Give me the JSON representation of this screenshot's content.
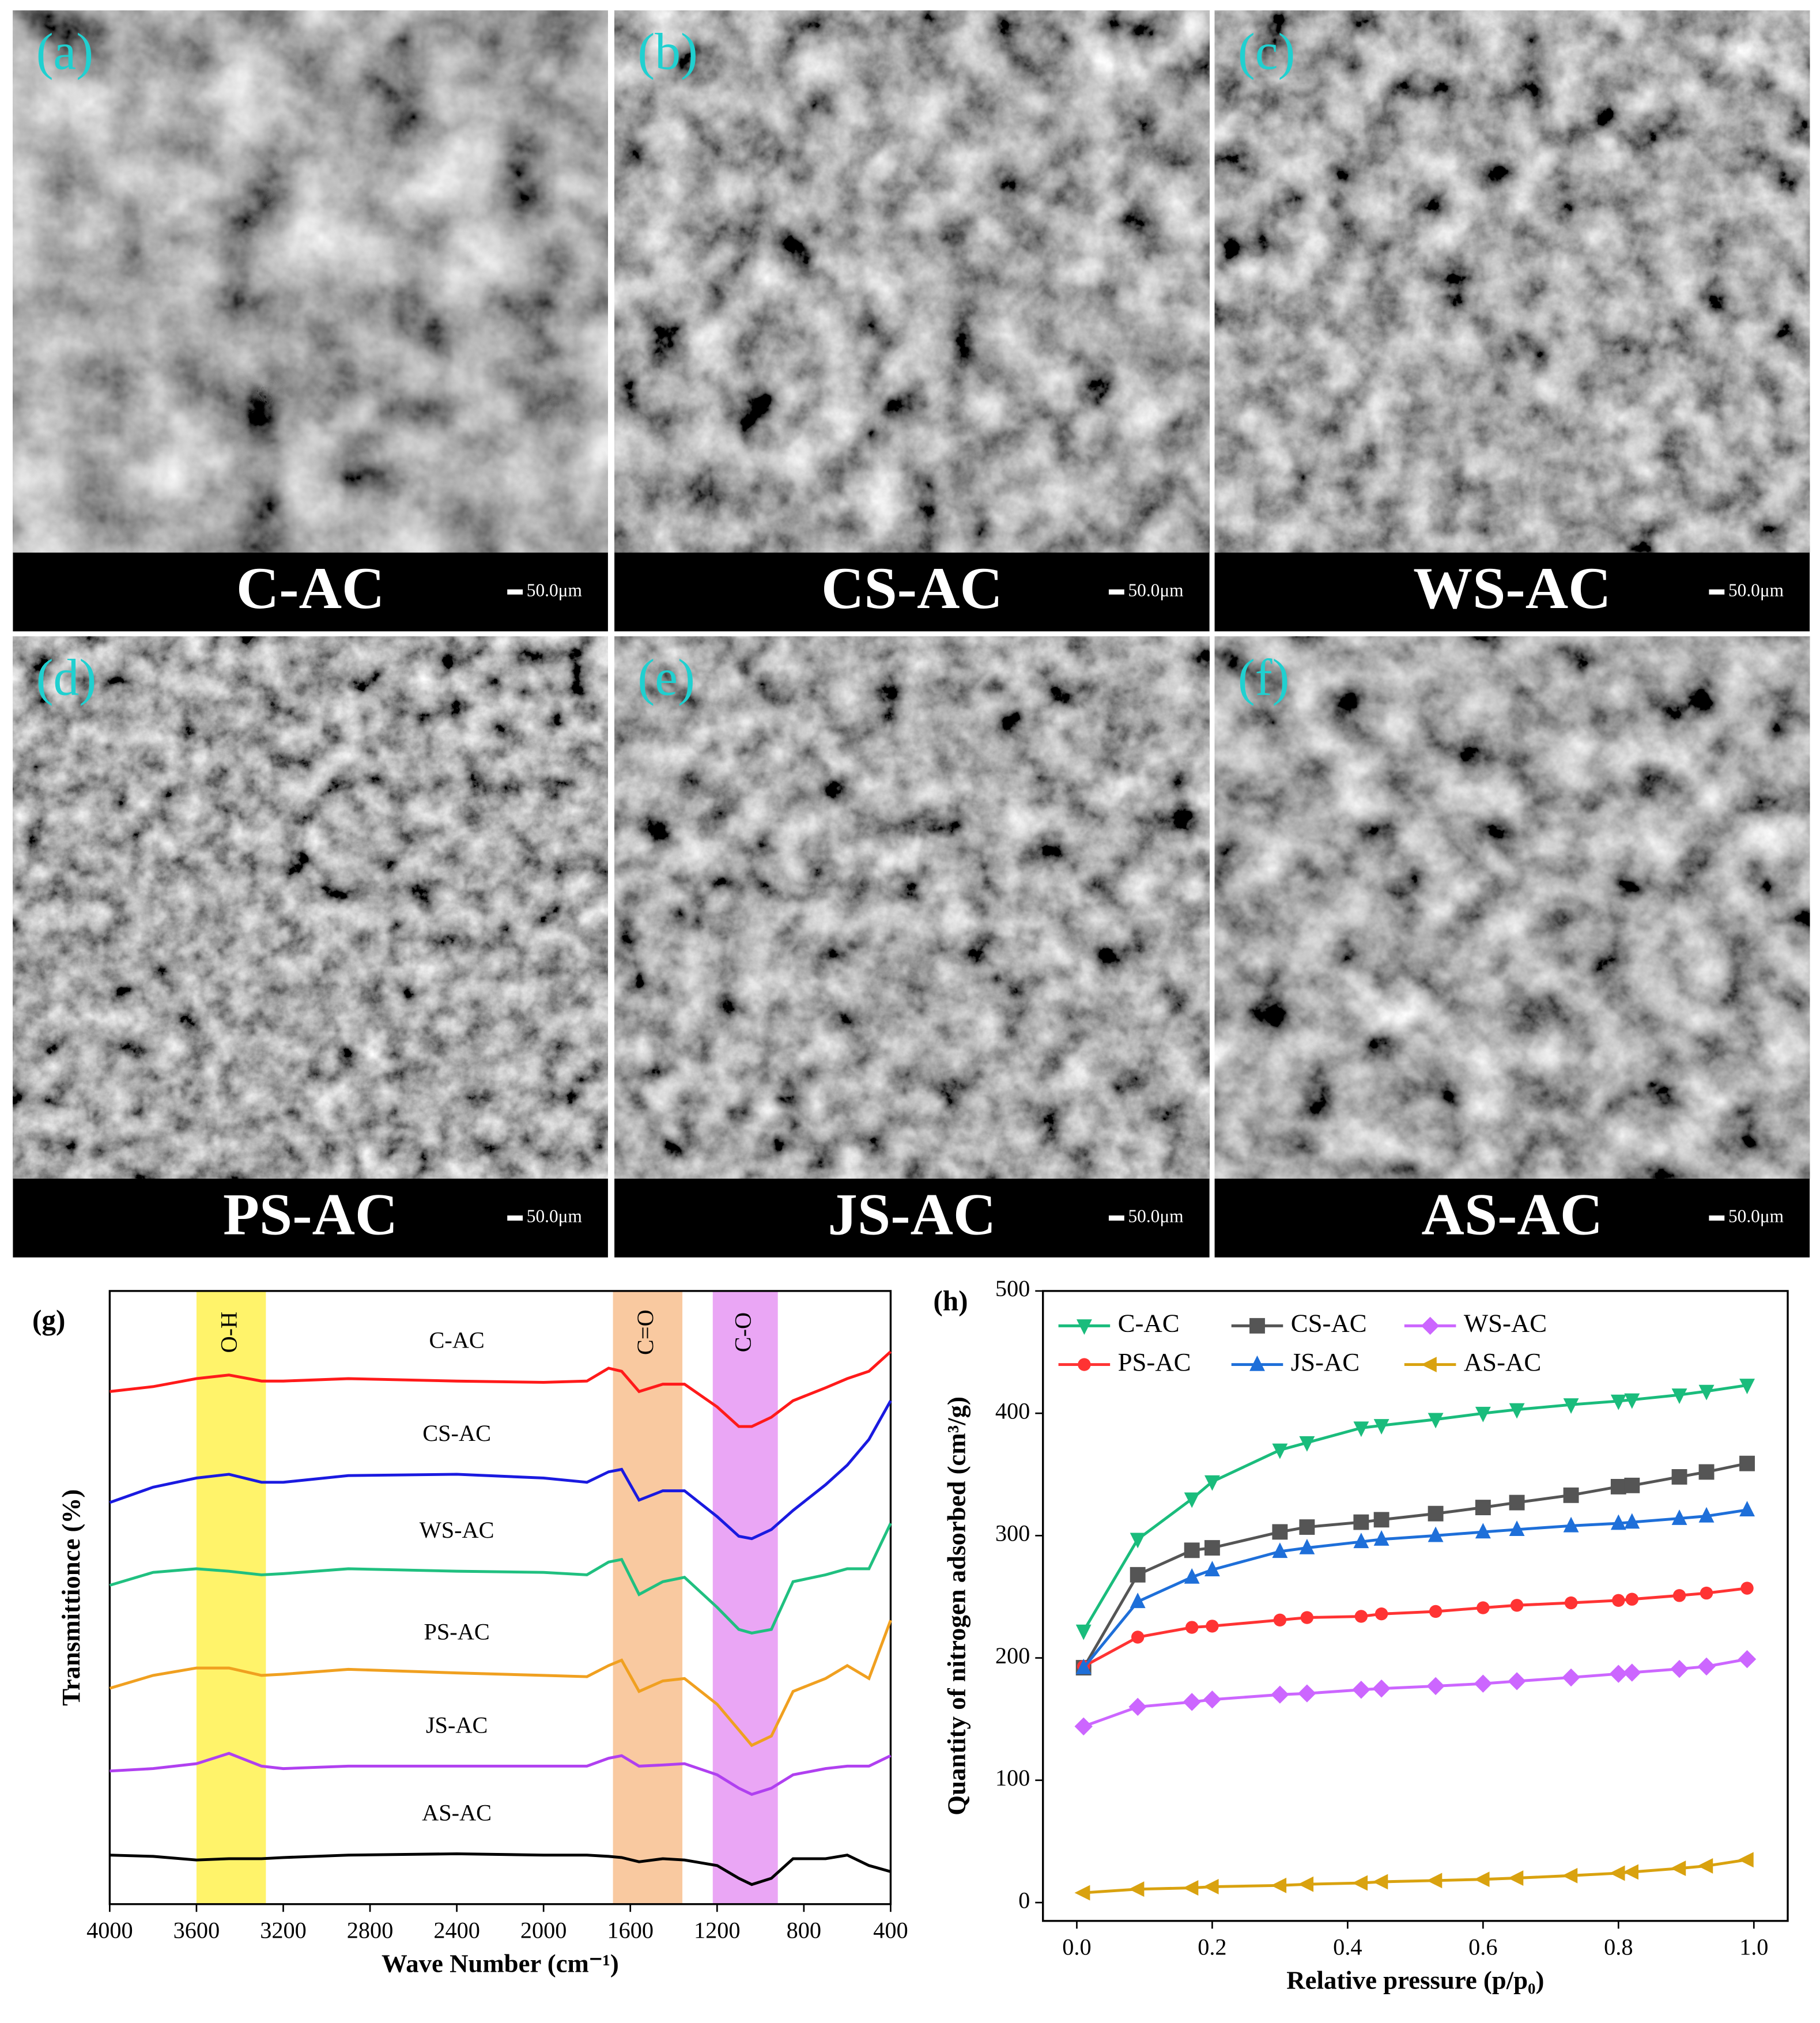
{
  "panels": [
    {
      "letter": "(a)",
      "label": "C-AC",
      "scale": "50.0μm"
    },
    {
      "letter": "(b)",
      "label": "CS-AC",
      "scale": "50.0μm"
    },
    {
      "letter": "(c)",
      "label": "WS-AC",
      "scale": "50.0μm"
    },
    {
      "letter": "(d)",
      "label": "PS-AC",
      "scale": "50.0μm"
    },
    {
      "letter": "(e)",
      "label": "JS-AC",
      "scale": "50.0μm"
    },
    {
      "letter": "(f)",
      "label": "AS-AC",
      "scale": "50.0μm"
    }
  ],
  "chart_data": [
    {
      "type": "line",
      "panel": "(g)",
      "x_label": "Wave Number (cm⁻¹)",
      "y_label": "Transmittionce (%)",
      "xlim": [
        4000,
        400
      ],
      "xticks": [
        4000,
        3600,
        3200,
        2800,
        2400,
        2000,
        1600,
        1200,
        800,
        400
      ],
      "ylim": [
        0,
        100
      ],
      "bands": [
        {
          "label": "O-H",
          "from": 3600,
          "to": 3280,
          "color": "#fff36a"
        },
        {
          "label": "C=O",
          "from": 1680,
          "to": 1360,
          "color": "#f9c9a0"
        },
        {
          "label": "C-O",
          "from": 1220,
          "to": 920,
          "color": "#eaa6f5"
        }
      ],
      "x": [
        4000,
        3800,
        3600,
        3450,
        3300,
        3200,
        2900,
        2400,
        2000,
        1800,
        1700,
        1640,
        1560,
        1450,
        1350,
        1200,
        1100,
        1040,
        950,
        850,
        700,
        600,
        500,
        400
      ],
      "series": [
        {
          "name": "C-AC",
          "color": "#ff1a1a",
          "values": [
            83.6,
            84.4,
            85.7,
            86.3,
            85.3,
            85.3,
            85.7,
            85.3,
            85.1,
            85.3,
            87.4,
            86.9,
            83.6,
            84.8,
            84.8,
            81.1,
            77.9,
            77.9,
            79.4,
            82.1,
            84.2,
            85.7,
            86.9,
            90.1
          ]
        },
        {
          "name": "CS-AC",
          "color": "#1a1ae0",
          "values": [
            65.5,
            68,
            69.5,
            70.1,
            68.8,
            68.8,
            69.9,
            70.1,
            69.5,
            68.8,
            70.5,
            70.9,
            65.9,
            67.4,
            67.4,
            63.2,
            60,
            59.6,
            61.1,
            64.2,
            68.4,
            71.6,
            75.8,
            82.1
          ]
        },
        {
          "name": "WS-AC",
          "color": "#20c080",
          "values": [
            52,
            54.1,
            54.7,
            54.3,
            53.7,
            53.9,
            54.7,
            54.3,
            54.1,
            53.7,
            55.8,
            56.2,
            50.5,
            52.6,
            53.3,
            48.4,
            44.8,
            44.2,
            44.8,
            52.6,
            53.7,
            54.7,
            54.7,
            62.1
          ]
        },
        {
          "name": "PS-AC",
          "color": "#f0a020",
          "values": [
            35.2,
            37.3,
            38.5,
            38.5,
            37.3,
            37.5,
            38.3,
            37.7,
            37.3,
            37.1,
            38.9,
            39.8,
            34.7,
            36.4,
            36.8,
            32.6,
            28.4,
            25.9,
            27.4,
            34.7,
            36.8,
            38.9,
            36.8,
            46.3
          ]
        },
        {
          "name": "JS-AC",
          "color": "#b040f0",
          "values": [
            21.7,
            22.1,
            22.9,
            24.6,
            22.5,
            22.1,
            22.5,
            22.5,
            22.5,
            22.5,
            23.8,
            24.2,
            22.5,
            22.7,
            22.9,
            21.1,
            18.9,
            17.9,
            18.9,
            21.1,
            22.1,
            22.5,
            22.5,
            24.2
          ]
        },
        {
          "name": "AS-AC",
          "color": "#000000",
          "values": [
            8,
            7.8,
            7.2,
            7.4,
            7.4,
            7.6,
            8,
            8.2,
            8,
            8,
            7.8,
            7.6,
            6.9,
            7.4,
            7.2,
            6.3,
            4.2,
            3.2,
            4.2,
            7.4,
            7.4,
            8,
            6.3,
            5.3
          ]
        }
      ]
    },
    {
      "type": "line",
      "panel": "(h)",
      "x_label": "Relative pressure (p/p₀)",
      "y_label": "Quantity of nitrogen adsorbed (cm³/g)",
      "xlim": [
        -0.05,
        1.05
      ],
      "xticks": [
        {
          "value": 0,
          "label": "0.0"
        },
        0.2,
        0.4,
        0.6,
        0.8,
        {
          "value": 1,
          "label": "1.0"
        }
      ],
      "ylim": [
        -15,
        500
      ],
      "yticks": [
        0,
        100,
        200,
        300,
        400,
        500
      ],
      "legend": "upper left",
      "x": [
        0.01,
        0.09,
        0.17,
        0.2,
        0.3,
        0.34,
        0.42,
        0.45,
        0.53,
        0.6,
        0.65,
        0.73,
        0.8,
        0.82,
        0.89,
        0.93,
        0.99
      ],
      "series": [
        {
          "name": "C-AC",
          "color": "#1abc7c",
          "marker": "triangle-down",
          "values": [
            222,
            297,
            330,
            344,
            370,
            376,
            388,
            390,
            395,
            400,
            403,
            407,
            410,
            411,
            415,
            418,
            423
          ]
        },
        {
          "name": "CS-AC",
          "color": "#555555",
          "marker": "square",
          "values": [
            192,
            268,
            288,
            290,
            303,
            307,
            311,
            313,
            318,
            323,
            327,
            333,
            340,
            341,
            348,
            352,
            359
          ]
        },
        {
          "name": "WS-AC",
          "color": "#cc66ff",
          "marker": "diamond",
          "values": [
            144,
            160,
            164,
            166,
            170,
            171,
            174,
            175,
            177,
            179,
            181,
            184,
            187,
            188,
            191,
            193,
            199
          ]
        },
        {
          "name": "PS-AC",
          "color": "#ff3333",
          "marker": "circle",
          "values": [
            193,
            217,
            225,
            226,
            231,
            233,
            234,
            236,
            238,
            241,
            243,
            245,
            247,
            248,
            251,
            253,
            257
          ]
        },
        {
          "name": "JS-AC",
          "color": "#1e6fd9",
          "marker": "triangle-up",
          "values": [
            192,
            246,
            266,
            272,
            287,
            290,
            295,
            297,
            300,
            303,
            305,
            308,
            310,
            311,
            314,
            316,
            321
          ]
        },
        {
          "name": "AS-AC",
          "color": "#d9a20f",
          "marker": "triangle-left",
          "values": [
            8,
            11,
            12,
            13,
            14,
            15,
            16,
            17,
            18,
            19,
            20,
            22,
            24,
            25,
            28,
            30,
            35
          ]
        }
      ]
    }
  ]
}
